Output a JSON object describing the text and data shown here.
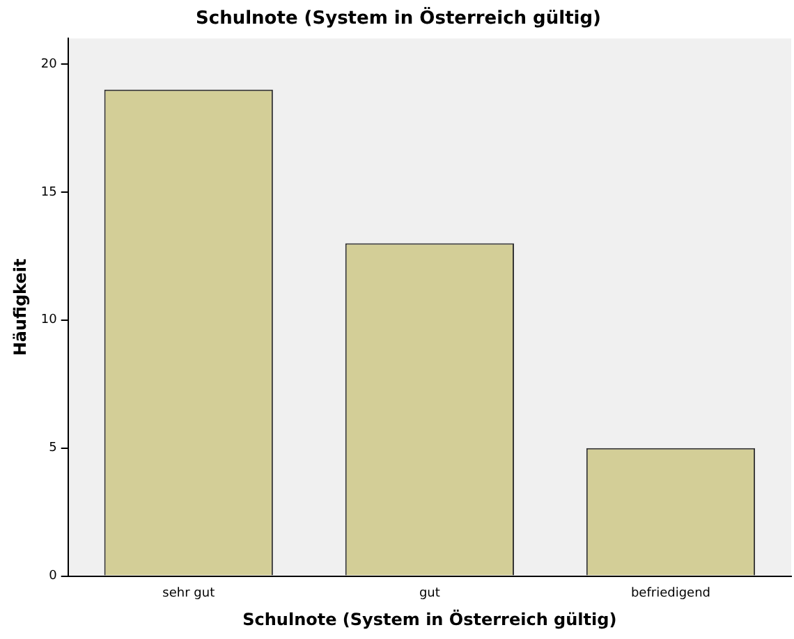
{
  "chart_data": {
    "type": "bar",
    "title": "Schulnote (System in Österreich gültig)",
    "xlabel": "Schulnote (System in Österreich gültig)",
    "ylabel": "Häufigkeit",
    "categories": [
      "sehr gut",
      "gut",
      "befriedigend"
    ],
    "values": [
      19,
      13,
      5
    ],
    "color": "#d3ce97",
    "ylim": [
      0,
      21
    ],
    "yticks": [
      0,
      5,
      10,
      15,
      20
    ],
    "grid": false,
    "legend": false
  }
}
